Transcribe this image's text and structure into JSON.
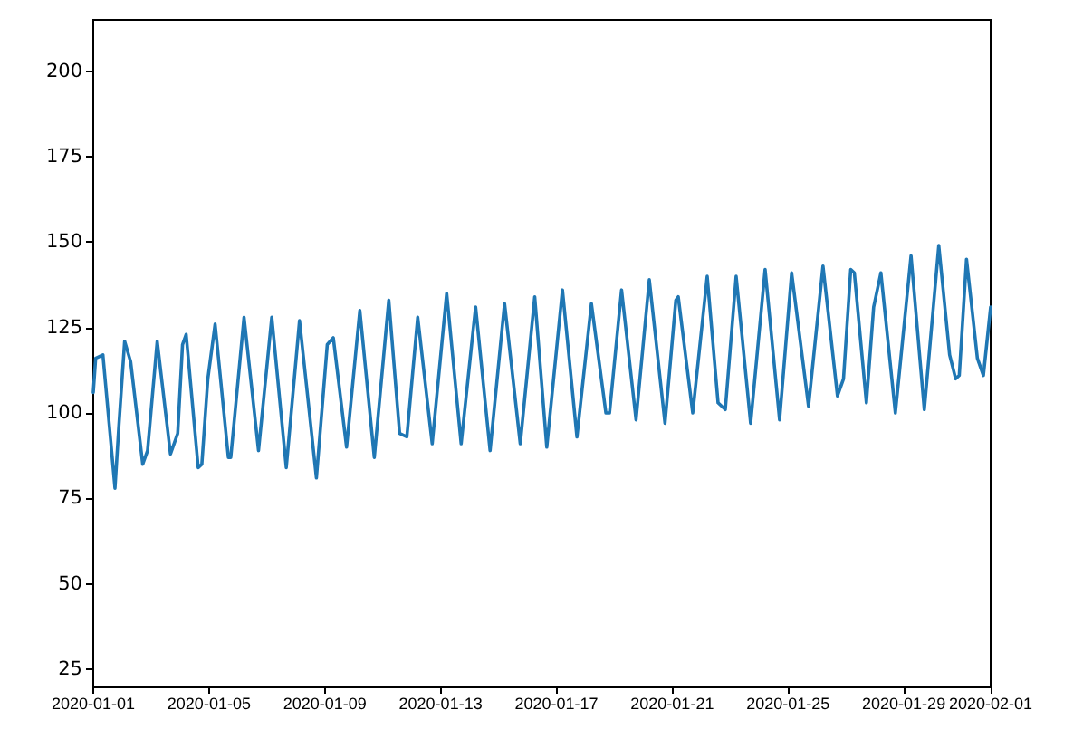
{
  "chart_data": {
    "type": "line",
    "x": [
      "2020-01-01T00:00",
      "2020-01-01T02:00",
      "2020-01-01T08:00",
      "2020-01-01T18:00",
      "2020-01-01T21:00",
      "2020-01-02T02:00",
      "2020-01-02T07:00",
      "2020-01-02T17:00",
      "2020-01-02T21:00",
      "2020-01-03T05:00",
      "2020-01-03T16:00",
      "2020-01-03T22:00",
      "2020-01-04T02:00",
      "2020-01-04T05:00",
      "2020-01-04T15:00",
      "2020-01-04T18:00",
      "2020-01-04T23:00",
      "2020-01-05T05:00",
      "2020-01-05T16:00",
      "2020-01-05T18:00",
      "2020-01-06T05:00",
      "2020-01-06T17:00",
      "2020-01-07T04:00",
      "2020-01-07T16:00",
      "2020-01-08T03:00",
      "2020-01-08T17:00",
      "2020-01-09T02:00",
      "2020-01-09T07:00",
      "2020-01-09T18:00",
      "2020-01-10T05:00",
      "2020-01-10T17:00",
      "2020-01-11T05:00",
      "2020-01-11T14:00",
      "2020-01-11T20:00",
      "2020-01-12T05:00",
      "2020-01-12T17:00",
      "2020-01-13T05:00",
      "2020-01-13T17:00",
      "2020-01-14T05:00",
      "2020-01-14T17:00",
      "2020-01-15T05:00",
      "2020-01-15T18:00",
      "2020-01-16T06:00",
      "2020-01-16T16:00",
      "2020-01-17T05:00",
      "2020-01-17T17:00",
      "2020-01-18T05:00",
      "2020-01-18T17:00",
      "2020-01-18T20:00",
      "2020-01-19T06:00",
      "2020-01-19T18:00",
      "2020-01-20T05:00",
      "2020-01-20T18:00",
      "2020-01-21T03:00",
      "2020-01-21T05:00",
      "2020-01-21T17:00",
      "2020-01-22T05:00",
      "2020-01-22T14:00",
      "2020-01-22T20:00",
      "2020-01-23T05:00",
      "2020-01-23T17:00",
      "2020-01-24T05:00",
      "2020-01-24T17:00",
      "2020-01-25T03:00",
      "2020-01-25T17:00",
      "2020-01-26T05:00",
      "2020-01-26T17:00",
      "2020-01-26T22:00",
      "2020-01-27T04:00",
      "2020-01-27T07:00",
      "2020-01-27T17:00",
      "2020-01-27T23:00",
      "2020-01-28T05:00",
      "2020-01-28T17:00",
      "2020-01-29T06:00",
      "2020-01-29T17:00",
      "2020-01-30T05:00",
      "2020-01-30T14:00",
      "2020-01-30T19:00",
      "2020-01-30T22:00",
      "2020-01-31T04:00",
      "2020-01-31T13:00",
      "2020-01-31T18:00",
      "2020-02-01T00:00"
    ],
    "series": [
      {
        "color": "#1f77b4",
        "values": [
          106,
          116,
          117,
          78,
          95,
          121,
          115,
          85,
          89,
          121,
          88,
          94,
          120,
          123,
          84,
          85,
          110,
          126,
          87,
          87,
          128,
          89,
          128,
          84,
          127,
          81,
          120,
          122,
          90,
          130,
          87,
          133,
          94,
          93,
          128,
          91,
          135,
          91,
          131,
          89,
          132,
          91,
          134,
          90,
          136,
          93,
          132,
          100,
          100,
          136,
          98,
          139,
          97,
          133,
          134,
          100,
          140,
          103,
          101,
          140,
          97,
          142,
          98,
          141,
          102,
          143,
          105,
          110,
          142,
          141,
          103,
          131,
          141,
          100,
          146,
          101,
          149,
          117,
          110,
          111,
          145,
          116,
          111,
          131
        ]
      }
    ],
    "xlim": [
      "2020-01-01",
      "2020-02-01"
    ],
    "xticks": [
      "2020-01-01",
      "2020-01-05",
      "2020-01-09",
      "2020-01-13",
      "2020-01-17",
      "2020-01-21",
      "2020-01-25",
      "2020-01-29",
      "2020-02-01"
    ],
    "ylim": [
      20,
      215
    ],
    "yticks": [
      25,
      50,
      75,
      100,
      125,
      150,
      175,
      200
    ],
    "marker": "none"
  }
}
